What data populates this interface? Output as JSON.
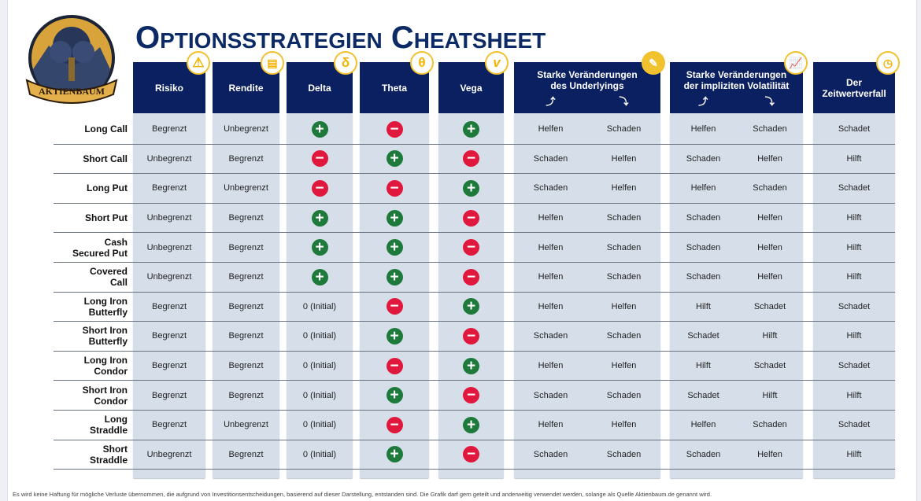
{
  "logo_text": "AKTIENBAUM",
  "title": "Optionsstrategien Cheatsheet",
  "headers": {
    "risiko": {
      "label": "Risiko",
      "icon": "risk-icon"
    },
    "rendite": {
      "label": "Rendite",
      "icon": "money-icon"
    },
    "delta": {
      "label": "Delta",
      "icon": "δ"
    },
    "theta": {
      "label": "Theta",
      "icon": "θ"
    },
    "vega": {
      "label": "Vega",
      "icon": "v"
    },
    "underlying": {
      "line1": "Starke Veränderungen",
      "line2": "des Underlyings",
      "icon": "document-icon"
    },
    "volatility": {
      "line1": "Starke Veränderungen",
      "line2": "der impliziten Volatilität",
      "icon": "chart-icon"
    },
    "zeit": {
      "line1": "Der",
      "line2": "Zeitwertverfall",
      "icon": "clock-icon"
    }
  },
  "colors": {
    "navy": "#0b2060",
    "gold": "#f2c12e",
    "plus": "#1d7a3a",
    "minus": "#e0183d",
    "cell_bg": "#d6dfe9"
  },
  "rows": [
    {
      "l1": "Long Call",
      "l2": "",
      "risiko": "Begrenzt",
      "rendite": "Unbegrenzt",
      "delta": "+",
      "theta": "-",
      "vega": "+",
      "u_up": "Helfen",
      "u_down": "Schaden",
      "v_up": "Helfen",
      "v_down": "Schaden",
      "zeit": "Schadet"
    },
    {
      "l1": "Short Call",
      "l2": "",
      "risiko": "Unbegrenzt",
      "rendite": "Begrenzt",
      "delta": "-",
      "theta": "+",
      "vega": "-",
      "u_up": "Schaden",
      "u_down": "Helfen",
      "v_up": "Schaden",
      "v_down": "Helfen",
      "zeit": "Hilft"
    },
    {
      "l1": "Long Put",
      "l2": "",
      "risiko": "Begrenzt",
      "rendite": "Unbegrenzt",
      "delta": "-",
      "theta": "-",
      "vega": "+",
      "u_up": "Schaden",
      "u_down": "Helfen",
      "v_up": "Helfen",
      "v_down": "Schaden",
      "zeit": "Schadet"
    },
    {
      "l1": "Short Put",
      "l2": "",
      "risiko": "Unbegrenzt",
      "rendite": "Begrenzt",
      "delta": "+",
      "theta": "+",
      "vega": "-",
      "u_up": "Helfen",
      "u_down": "Schaden",
      "v_up": "Schaden",
      "v_down": "Helfen",
      "zeit": "Hilft"
    },
    {
      "l1": "Cash",
      "l2": "Secured Put",
      "risiko": "Unbegrenzt",
      "rendite": "Begrenzt",
      "delta": "+",
      "theta": "+",
      "vega": "-",
      "u_up": "Helfen",
      "u_down": "Schaden",
      "v_up": "Schaden",
      "v_down": "Helfen",
      "zeit": "Hilft"
    },
    {
      "l1": "Covered",
      "l2": "Call",
      "risiko": "Unbegrenzt",
      "rendite": "Begrenzt",
      "delta": "+",
      "theta": "+",
      "vega": "-",
      "u_up": "Helfen",
      "u_down": "Schaden",
      "v_up": "Schaden",
      "v_down": "Helfen",
      "zeit": "Hilft"
    },
    {
      "l1": "Long Iron",
      "l2": "Butterfly",
      "risiko": "Begrenzt",
      "rendite": "Begrenzt",
      "delta": "0 (Initial)",
      "theta": "-",
      "vega": "+",
      "u_up": "Helfen",
      "u_down": "Helfen",
      "v_up": "Hilft",
      "v_down": "Schadet",
      "zeit": "Schadet"
    },
    {
      "l1": "Short Iron",
      "l2": "Butterfly",
      "risiko": "Begrenzt",
      "rendite": "Begrenzt",
      "delta": "0 (Initial)",
      "theta": "+",
      "vega": "-",
      "u_up": "Schaden",
      "u_down": "Schaden",
      "v_up": "Schadet",
      "v_down": "Hilft",
      "zeit": "Hilft"
    },
    {
      "l1": "Long Iron",
      "l2": "Condor",
      "risiko": "Begrenzt",
      "rendite": "Begrenzt",
      "delta": "0 (Initial)",
      "theta": "-",
      "vega": "+",
      "u_up": "Helfen",
      "u_down": "Helfen",
      "v_up": "Hilft",
      "v_down": "Schadet",
      "zeit": "Schadet"
    },
    {
      "l1": "Short Iron",
      "l2": "Condor",
      "risiko": "Begrenzt",
      "rendite": "Begrenzt",
      "delta": "0 (Initial)",
      "theta": "+",
      "vega": "-",
      "u_up": "Schaden",
      "u_down": "Schaden",
      "v_up": "Schadet",
      "v_down": "Hilft",
      "zeit": "Hilft"
    },
    {
      "l1": "Long",
      "l2": "Straddle",
      "risiko": "Begrenzt",
      "rendite": "Unbegrenzt",
      "delta": "0 (Initial)",
      "theta": "-",
      "vega": "+",
      "u_up": "Helfen",
      "u_down": "Helfen",
      "v_up": "Helfen",
      "v_down": "Schaden",
      "zeit": "Schadet"
    },
    {
      "l1": "Short",
      "l2": "Straddle",
      "risiko": "Unbegrenzt",
      "rendite": "Begrenzt",
      "delta": "0 (Initial)",
      "theta": "+",
      "vega": "-",
      "u_up": "Schaden",
      "u_down": "Schaden",
      "v_up": "Schaden",
      "v_down": "Helfen",
      "zeit": "Hilft"
    }
  ],
  "footer": "Es wird keine Haftung für mögliche Verluste übernommen, die aufgrund von Investitionsentscheidungen, basierend auf dieser Darstellung, entstanden sind. Die Grafik darf gern geteilt und anderweitig verwendet werden, solange als Quelle Aktienbaum.de genannt wird."
}
